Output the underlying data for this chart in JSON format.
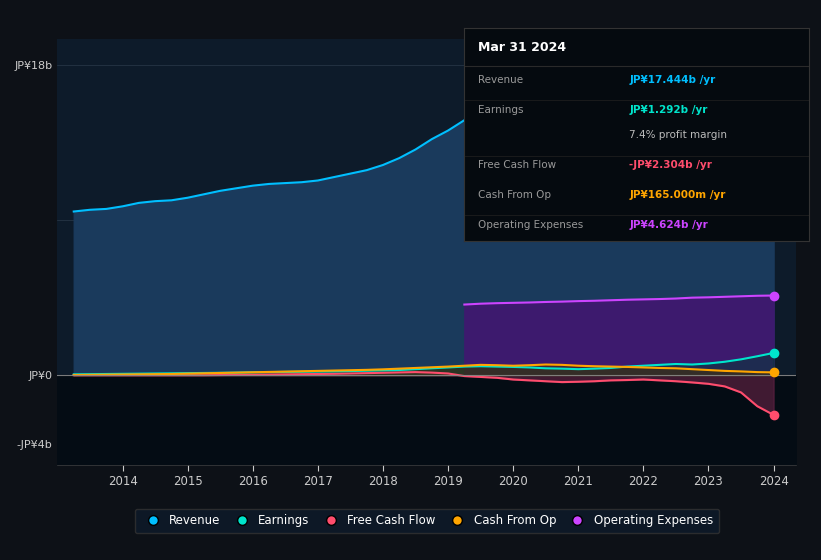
{
  "background_color": "#0d1117",
  "plot_bg_color": "#0d1b2a",
  "below_zero_color": "#060d14",
  "ylabel_top": "JP¥18b",
  "ylabel_zero": "JP¥0",
  "ylabel_bottom": "-JP¥4b",
  "years": [
    2013.25,
    2013.5,
    2013.75,
    2014.0,
    2014.25,
    2014.5,
    2014.75,
    2015.0,
    2015.25,
    2015.5,
    2015.75,
    2016.0,
    2016.25,
    2016.5,
    2016.75,
    2017.0,
    2017.25,
    2017.5,
    2017.75,
    2018.0,
    2018.25,
    2018.5,
    2018.75,
    2019.0,
    2019.25,
    2019.5,
    2019.75,
    2020.0,
    2020.25,
    2020.5,
    2020.75,
    2021.0,
    2021.25,
    2021.5,
    2021.75,
    2022.0,
    2022.25,
    2022.5,
    2022.75,
    2023.0,
    2023.25,
    2023.5,
    2023.75,
    2024.0
  ],
  "revenue": [
    9.5,
    9.6,
    9.65,
    9.8,
    10.0,
    10.1,
    10.15,
    10.3,
    10.5,
    10.7,
    10.85,
    11.0,
    11.1,
    11.15,
    11.2,
    11.3,
    11.5,
    11.7,
    11.9,
    12.2,
    12.6,
    13.1,
    13.7,
    14.2,
    14.8,
    15.1,
    14.9,
    14.5,
    14.3,
    14.1,
    14.0,
    13.8,
    13.9,
    14.0,
    14.15,
    14.0,
    13.8,
    13.6,
    13.5,
    13.65,
    14.0,
    14.8,
    16.0,
    17.444
  ],
  "earnings": [
    0.05,
    0.06,
    0.07,
    0.08,
    0.09,
    0.1,
    0.11,
    0.12,
    0.13,
    0.14,
    0.15,
    0.17,
    0.18,
    0.19,
    0.2,
    0.21,
    0.22,
    0.24,
    0.26,
    0.28,
    0.3,
    0.35,
    0.4,
    0.45,
    0.5,
    0.52,
    0.5,
    0.48,
    0.45,
    0.4,
    0.38,
    0.35,
    0.38,
    0.42,
    0.5,
    0.55,
    0.6,
    0.65,
    0.62,
    0.68,
    0.78,
    0.92,
    1.1,
    1.292
  ],
  "free_cash_flow": [
    0.0,
    0.0,
    0.0,
    0.0,
    0.0,
    0.0,
    0.0,
    0.0,
    0.0,
    0.01,
    0.02,
    0.03,
    0.04,
    0.05,
    0.06,
    0.07,
    0.08,
    0.1,
    0.12,
    0.14,
    0.16,
    0.18,
    0.15,
    0.1,
    -0.05,
    -0.1,
    -0.15,
    -0.25,
    -0.3,
    -0.35,
    -0.4,
    -0.38,
    -0.35,
    -0.3,
    -0.28,
    -0.25,
    -0.3,
    -0.35,
    -0.42,
    -0.5,
    -0.65,
    -1.0,
    -1.8,
    -2.304
  ],
  "cash_from_op": [
    0.01,
    0.02,
    0.03,
    0.04,
    0.05,
    0.06,
    0.07,
    0.09,
    0.11,
    0.13,
    0.15,
    0.17,
    0.19,
    0.21,
    0.23,
    0.25,
    0.27,
    0.29,
    0.31,
    0.34,
    0.38,
    0.42,
    0.46,
    0.5,
    0.55,
    0.6,
    0.58,
    0.55,
    0.58,
    0.62,
    0.6,
    0.55,
    0.52,
    0.5,
    0.48,
    0.45,
    0.42,
    0.4,
    0.35,
    0.3,
    0.25,
    0.22,
    0.18,
    0.165
  ],
  "op_expenses": [
    0.0,
    0.0,
    0.0,
    0.0,
    0.0,
    0.0,
    0.0,
    0.0,
    0.0,
    0.0,
    0.0,
    0.0,
    0.0,
    0.0,
    0.0,
    0.0,
    0.0,
    0.0,
    0.0,
    0.0,
    0.0,
    0.0,
    0.0,
    0.0,
    4.1,
    4.15,
    4.18,
    4.2,
    4.22,
    4.25,
    4.27,
    4.3,
    4.32,
    4.35,
    4.38,
    4.4,
    4.42,
    4.45,
    4.5,
    4.52,
    4.55,
    4.58,
    4.61,
    4.624
  ],
  "revenue_color": "#00bfff",
  "revenue_fill": "#1a3a5c",
  "earnings_color": "#00e5cc",
  "earnings_fill": "#003d33",
  "free_cash_flow_color": "#ff4d6d",
  "fcf_fill": "#6b3050",
  "cash_from_op_color": "#ffa500",
  "cash_op_fill": "#4a3000",
  "op_expenses_color": "#cc44ff",
  "op_expenses_fill": "#3d1a6e",
  "zero_line_color": "#888888",
  "grid_color": "#1e2a3a",
  "tooltip_bg": "#050a0f",
  "tooltip_border": "#333333",
  "text_color_light": "#cccccc",
  "text_color_dim": "#888888",
  "xlim_left": 2013.0,
  "xlim_right": 2024.35,
  "ylim_bottom": -5.2,
  "ylim_top": 19.5,
  "ytick_vals": [
    18,
    0,
    -4
  ],
  "xtick_years": [
    2014,
    2015,
    2016,
    2017,
    2018,
    2019,
    2020,
    2021,
    2022,
    2023,
    2024
  ],
  "legend_items": [
    {
      "label": "Revenue",
      "color": "#00bfff"
    },
    {
      "label": "Earnings",
      "color": "#00e5cc"
    },
    {
      "label": "Free Cash Flow",
      "color": "#ff4d6d"
    },
    {
      "label": "Cash From Op",
      "color": "#ffa500"
    },
    {
      "label": "Operating Expenses",
      "color": "#cc44ff"
    }
  ],
  "tooltip": {
    "title": "Mar 31 2024",
    "rows": [
      {
        "label": "Revenue",
        "value": "JP¥17.444b /yr",
        "value_color": "#00bfff"
      },
      {
        "label": "Earnings",
        "value": "JP¥1.292b /yr",
        "value_color": "#00e5cc"
      },
      {
        "label": "",
        "value": "7.4% profit margin",
        "value_color": "#bbbbbb"
      },
      {
        "label": "Free Cash Flow",
        "value": "-JP¥2.304b /yr",
        "value_color": "#ff4d6d"
      },
      {
        "label": "Cash From Op",
        "value": "JP¥165.000m /yr",
        "value_color": "#ffa500"
      },
      {
        "label": "Operating Expenses",
        "value": "JP¥4.624b /yr",
        "value_color": "#cc44ff"
      }
    ]
  }
}
